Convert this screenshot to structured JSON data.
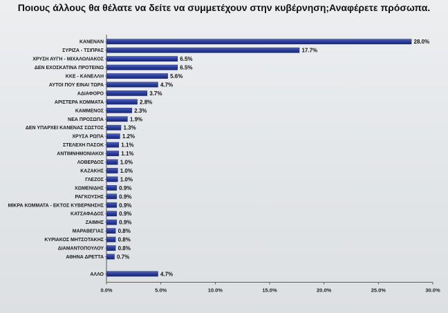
{
  "chart_data": {
    "type": "bar",
    "orientation": "horizontal",
    "title": "Ποιους άλλους θα θέλατε να δείτε να συμμετέχουν στην κυβέρνηση;Αναφέρετε πρόσωπα.",
    "categories": [
      "ΚΑΝΕΝΑΝ",
      "ΣΥΡΙΖΑ - ΤΣΙΠΡΑΣ",
      "ΧΡΥΣΗ ΑΥΓΗ - ΜΙΧΑΛΟΛΙΑΚΟΣ",
      "ΔΕΝ ΕΧΟΣΚΑΤΙΝΑ ΠΡΟΤΕΙΝΩ",
      "ΚΚΕ - ΚΑΝΕΛΛΗ",
      "ΑΥΤΟΙ ΠΟΥ ΕΙΝΑΙ ΤΩΡΑ",
      "ΑΔΙΑΦΟΡΟ",
      "ΑΡΙΣΤΕΡΑ ΚΟΜΜΑΤΑ",
      "ΚΑΜΜΕΝΟΣ",
      "ΝΕΑ ΠΡΟΣΩΠΑ",
      "ΔΕΝ ΥΠΑΡΧΕΙ ΚΑΝΕΝΑΣ ΣΩΣΤΟΣ",
      "ΧΡΥΣΑ ΡΩΠΑ",
      "ΣΤΕΛΕΧΗ ΠΑΣΟΚ",
      "ΑΝΤΙΜΝΗΜΟΝΙΑΚΟΙ",
      "ΛΟΒΕΡΔΟΣ",
      "ΚΑΖΑΚΗΣ",
      "ΓΛΕΖΟΣ",
      "ΧΩΜΕΝΙΔΗΣ",
      "ΡΑΓΚΟΥΣΗΣ",
      "ΜΙΚΡΑ ΚΟΜΜΑΤΑ - ΕΚΤΟΣ ΚΥΒΕΡΝΗΣΗΣ",
      "ΚΑΤΣΑΦΑΔΟΣ",
      "ΖΑΙΜΗΣ",
      "ΜΑΡΑΒΕΓΙΑΣ",
      "ΚΥΡΙΑΚΟΣ ΜΗΤΣΟΤΑΚΗΣ",
      "ΔΙΑΜΑΝΤΟΠΟΥΛΟΥ",
      "ΑΘΗΝΑ ΔΡΕΤΤΑ",
      "",
      "ΑΛΛΟ"
    ],
    "values": [
      28.0,
      17.7,
      6.5,
      6.5,
      5.6,
      4.7,
      3.7,
      2.8,
      2.3,
      1.9,
      1.3,
      1.2,
      1.1,
      1.1,
      1.0,
      1.0,
      1.0,
      0.9,
      0.9,
      0.9,
      0.9,
      0.9,
      0.8,
      0.8,
      0.8,
      0.7,
      null,
      4.7
    ],
    "value_labels": [
      "28.0%",
      "17.7%",
      "6.5%",
      "6.5%",
      "5.6%",
      "4.7%",
      "3.7%",
      "2.8%",
      "2.3%",
      "1.9%",
      "1.3%",
      "1.2%",
      "1.1%",
      "1.1%",
      "1.0%",
      "1.0%",
      "1.0%",
      "0.9%",
      "0.9%",
      "0.9%",
      "0.9%",
      "0.9%",
      "0.8%",
      "0.8%",
      "0.8%",
      "0.7%",
      "",
      "4.7%"
    ],
    "xlim": [
      0,
      30
    ],
    "xticks": [
      "0.0%",
      "5.0%",
      "10.0%",
      "15.0%",
      "20.0%",
      "25.0%",
      "30.0%"
    ],
    "grid": false,
    "legend": "none",
    "bar_color": "#2b3f9e"
  }
}
